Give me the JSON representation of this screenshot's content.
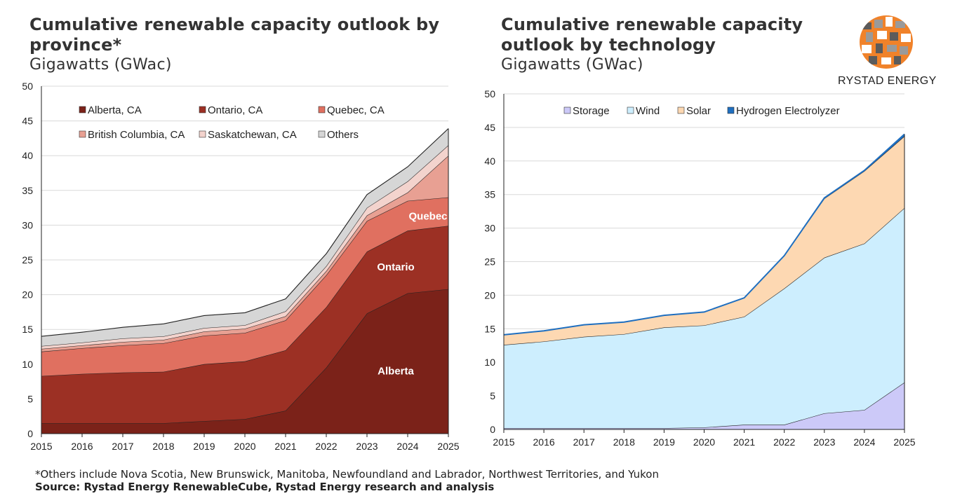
{
  "brand": {
    "name": "RYSTAD ENERGY",
    "logo_colors": [
      "#f0822a",
      "#9a9a9a",
      "#5b5b5b"
    ]
  },
  "footnote": "*Others include Nova Scotia, New Brunswick, Manitoba, Newfoundland and Labrador, Northwest Territories, and Yukon",
  "source": "Source: Rystad Energy RenewableCube, Rystad Energy research and analysis",
  "chart_data": [
    {
      "type": "area",
      "stacked": true,
      "title": "Cumulative renewable capacity outlook by province*",
      "subtitle": "Gigawatts (GWac)",
      "x": [
        "2015",
        "2016",
        "2017",
        "2018",
        "2019",
        "2020",
        "2021",
        "2022",
        "2023",
        "2024",
        "2025"
      ],
      "ylim": [
        0,
        50
      ],
      "yticks": [
        "0",
        "5",
        "10",
        "15",
        "20",
        "25",
        "30",
        "35",
        "40",
        "45",
        "50"
      ],
      "grid": true,
      "legend_position": "top",
      "series": [
        {
          "name": "Alberta, CA",
          "color": "#7b2219",
          "values": [
            1.5,
            1.5,
            1.5,
            1.5,
            1.8,
            2.1,
            3.3,
            9.5,
            17.3,
            20.2,
            20.8
          ]
        },
        {
          "name": "Ontario, CA",
          "color": "#9c3024",
          "values": [
            6.8,
            7.1,
            7.3,
            7.4,
            8.2,
            8.3,
            8.7,
            8.7,
            8.9,
            9.0,
            9.1
          ]
        },
        {
          "name": "Quebec, CA",
          "color": "#e07060",
          "values": [
            3.5,
            3.7,
            3.9,
            4.1,
            4.1,
            4.1,
            4.3,
            4.6,
            4.4,
            4.3,
            4.1
          ]
        },
        {
          "name": "British Columbia, CA",
          "color": "#e8a093",
          "values": [
            0.4,
            0.4,
            0.5,
            0.5,
            0.6,
            0.6,
            0.6,
            0.6,
            0.8,
            1.2,
            6.0
          ]
        },
        {
          "name": "Saskatchewan, CA",
          "color": "#f3d3cd",
          "values": [
            0.4,
            0.4,
            0.5,
            0.5,
            0.5,
            0.5,
            0.7,
            0.7,
            1.1,
            1.6,
            1.5
          ]
        },
        {
          "name": "Others",
          "color": "#d6d6d6",
          "values": [
            1.4,
            1.5,
            1.6,
            1.8,
            1.8,
            1.8,
            1.8,
            1.8,
            1.9,
            2.1,
            2.4
          ]
        }
      ],
      "annotations": [
        {
          "text": "Alberta",
          "x": "2024",
          "y": 8.5
        },
        {
          "text": "Ontario",
          "x": "2024",
          "y": 23.5
        },
        {
          "text": "Quebec",
          "x": "2024.5",
          "y": 30.8
        }
      ]
    },
    {
      "type": "area",
      "stacked": true,
      "title": "Cumulative renewable capacity outlook by technology",
      "subtitle": "Gigawatts (GWac)",
      "x": [
        "2015",
        "2016",
        "2017",
        "2018",
        "2019",
        "2020",
        "2021",
        "2022",
        "2023",
        "2024",
        "2025"
      ],
      "ylim": [
        0,
        50
      ],
      "yticks": [
        "0",
        "5",
        "10",
        "15",
        "20",
        "25",
        "30",
        "35",
        "40",
        "45",
        "50"
      ],
      "grid": true,
      "legend_position": "top",
      "series": [
        {
          "name": "Storage",
          "color": "#ccc9f8",
          "values": [
            0.2,
            0.2,
            0.2,
            0.2,
            0.2,
            0.3,
            0.7,
            0.7,
            2.4,
            2.9,
            7.0
          ]
        },
        {
          "name": "Wind",
          "color": "#cdeefe",
          "values": [
            12.4,
            12.9,
            13.6,
            14.0,
            15.0,
            15.2,
            16.1,
            20.3,
            23.2,
            24.8,
            26.0
          ]
        },
        {
          "name": "Solar",
          "color": "#fdd8b2",
          "values": [
            1.5,
            1.6,
            1.8,
            1.8,
            1.8,
            2.0,
            2.8,
            4.9,
            8.8,
            10.8,
            10.7
          ]
        },
        {
          "name": "Hydrogen Electrolyzer",
          "color": "#1f6fc0",
          "values": [
            0,
            0,
            0,
            0,
            0,
            0,
            0,
            0,
            0.1,
            0.1,
            0.3
          ]
        }
      ]
    }
  ]
}
